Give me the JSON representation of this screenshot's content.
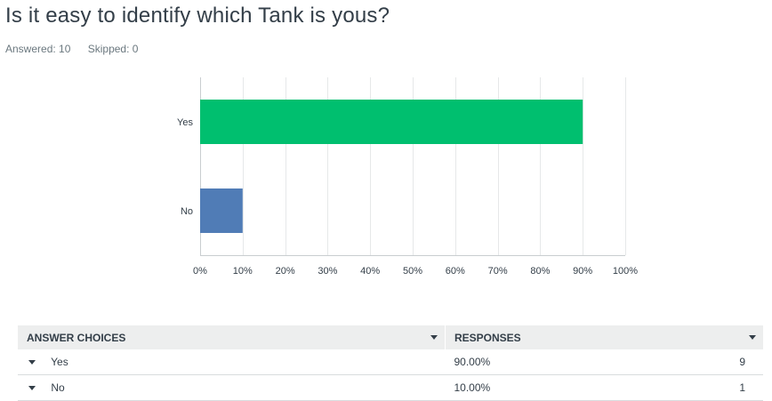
{
  "title": "Is it easy to identify which Tank is yous?",
  "answered_label": "Answered: 10",
  "skipped_label": "Skipped: 0",
  "chart_data": {
    "type": "bar",
    "orientation": "horizontal",
    "categories": [
      "Yes",
      "No"
    ],
    "values": [
      90,
      10
    ],
    "colors": [
      "#00bf6f",
      "#507cb6"
    ],
    "xlim": [
      0,
      100
    ],
    "xticks": [
      "0%",
      "10%",
      "20%",
      "30%",
      "40%",
      "50%",
      "60%",
      "70%",
      "80%",
      "90%",
      "100%"
    ],
    "grid": true
  },
  "table": {
    "headers": {
      "choices": "ANSWER CHOICES",
      "responses": "RESPONSES"
    },
    "rows": [
      {
        "choice": "Yes",
        "percent": "90.00%",
        "count": "9"
      },
      {
        "choice": "No",
        "percent": "10.00%",
        "count": "1"
      }
    ]
  }
}
